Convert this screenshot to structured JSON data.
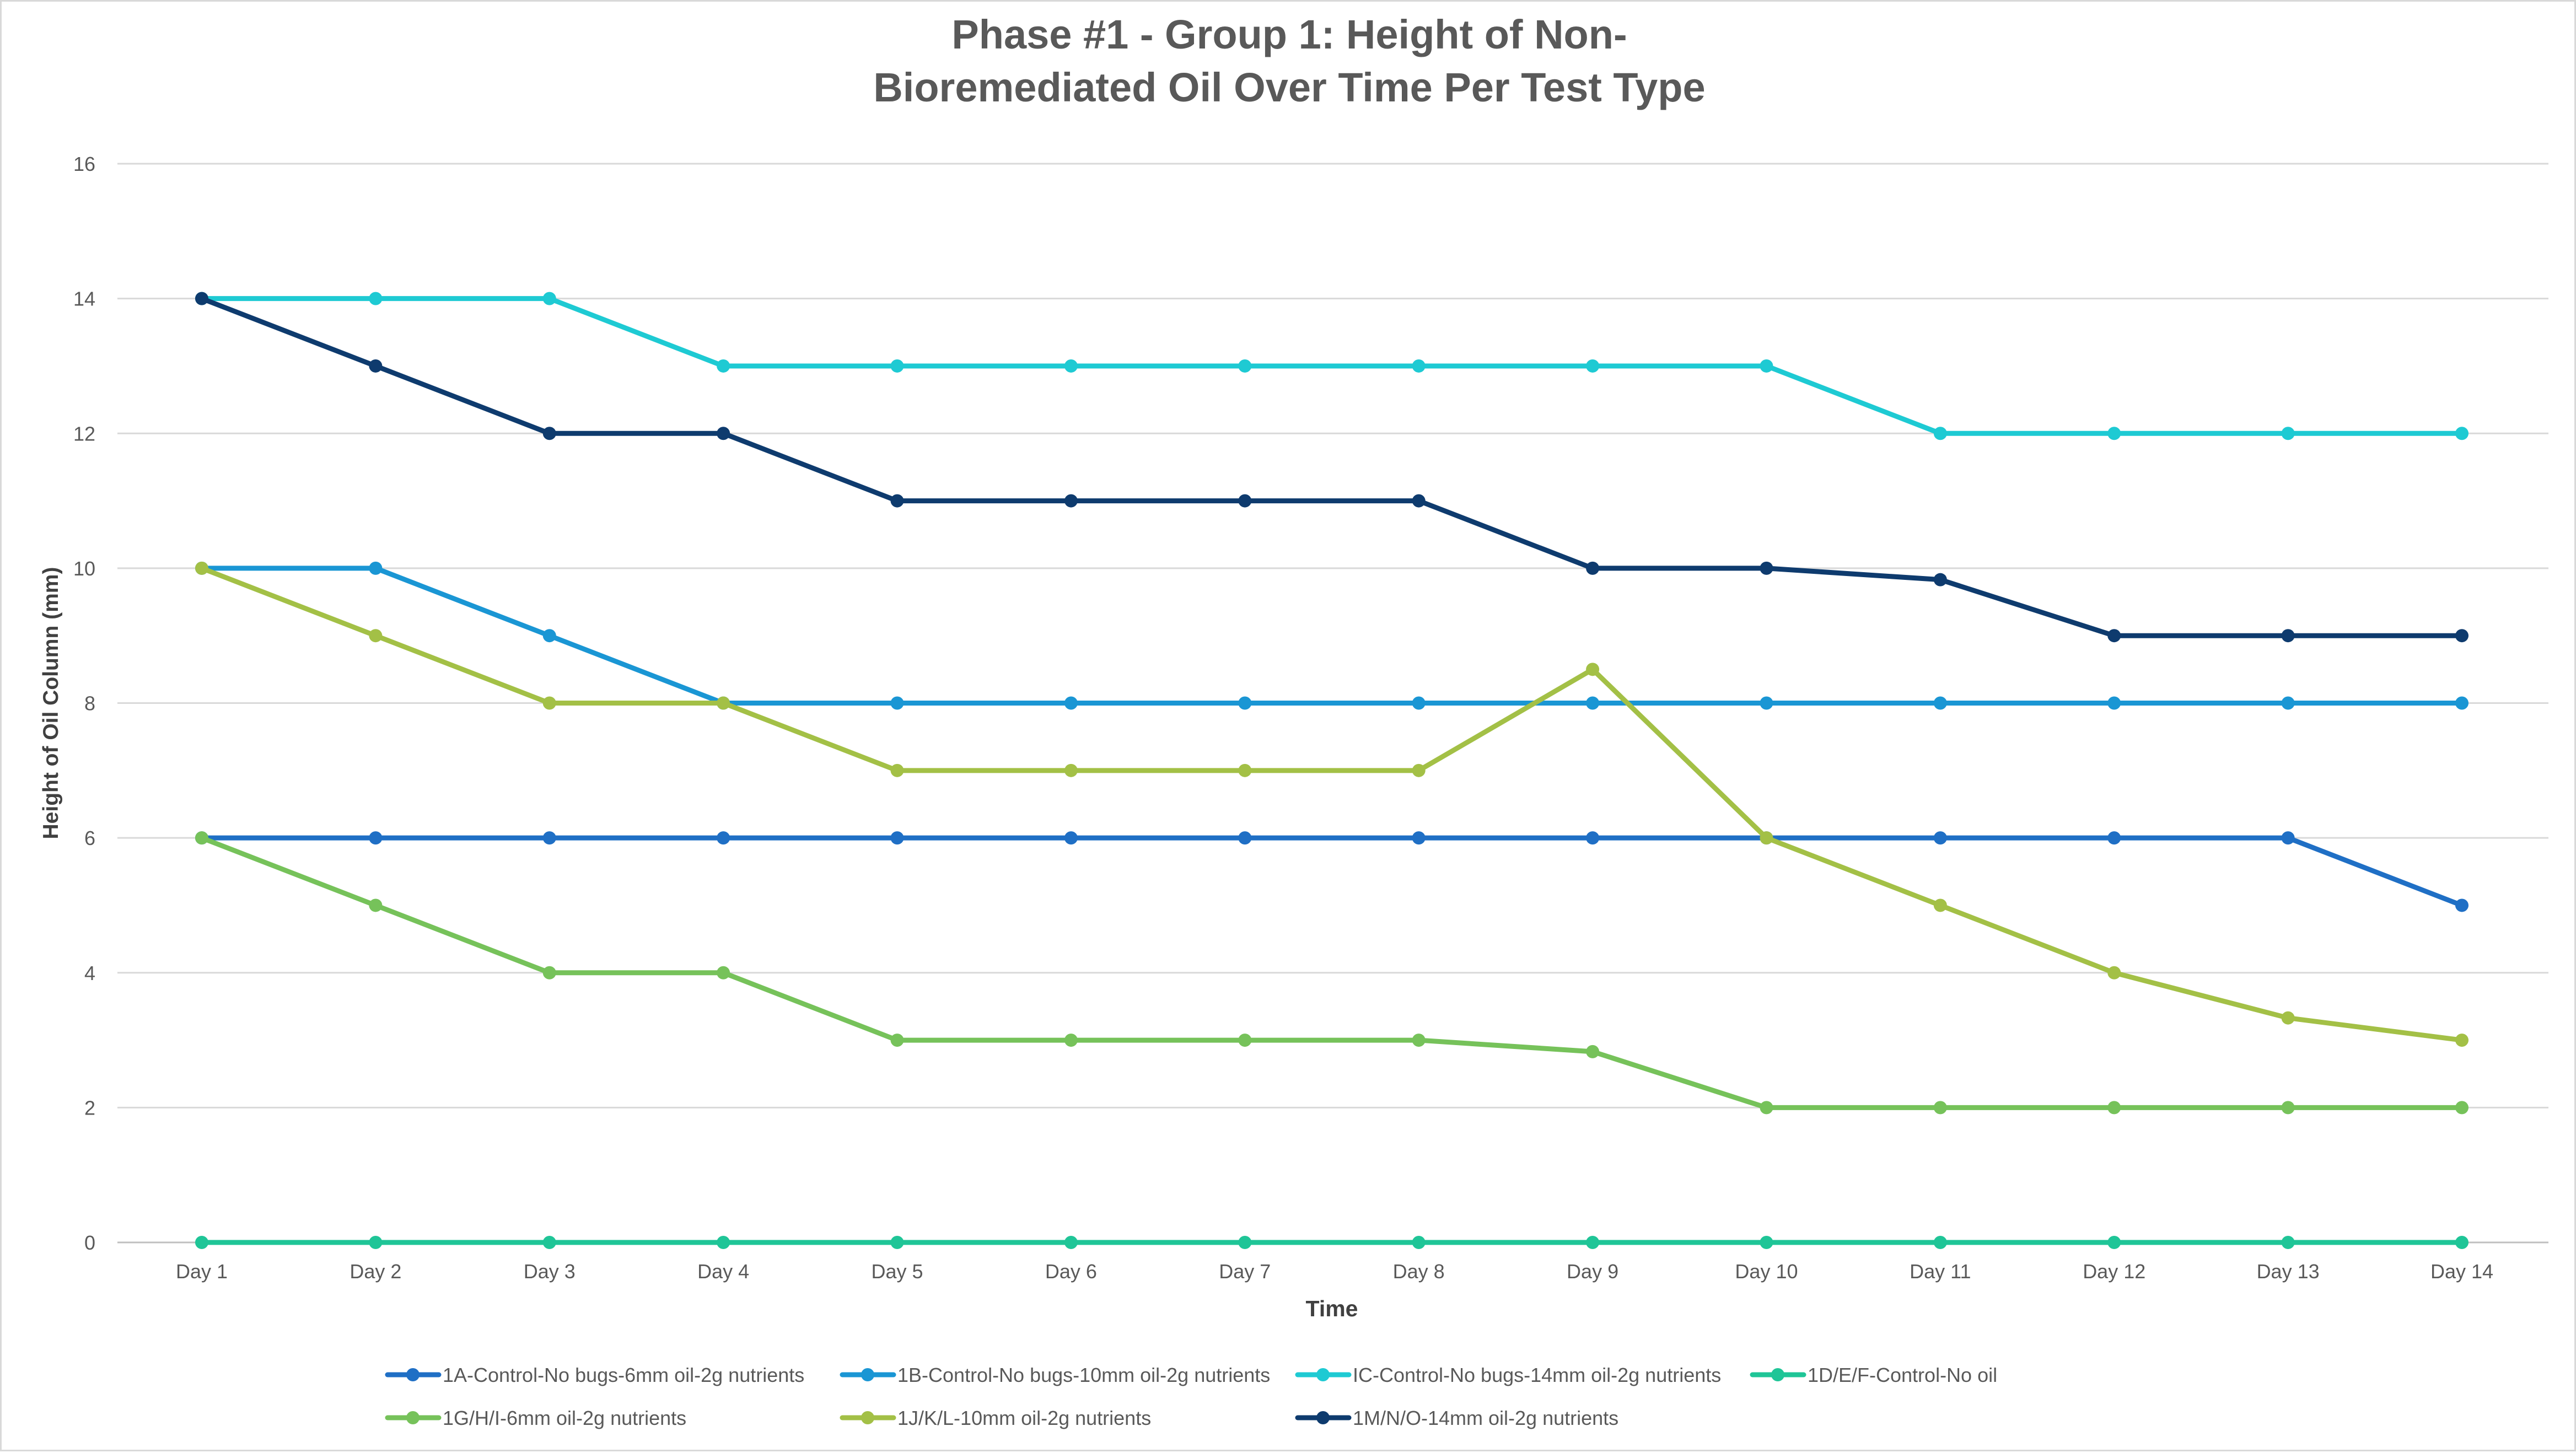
{
  "chart_data": {
    "type": "line",
    "title": "Phase #1 - Group 1: Height of Non-\nBioremediated Oil Over Time Per Test Type",
    "xlabel": "Time",
    "ylabel": "Height of Oil Column (mm)",
    "ylim": [
      0,
      16
    ],
    "yticks": [
      0,
      2,
      4,
      6,
      8,
      10,
      12,
      14,
      16
    ],
    "grid": true,
    "legend_position": "bottom",
    "categories": [
      "Day 1",
      "Day 2",
      "Day 3",
      "Day 4",
      "Day 5",
      "Day 6",
      "Day 7",
      "Day 8",
      "Day 9",
      "Day 10",
      "Day 11",
      "Day 12",
      "Day 13",
      "Day 14"
    ],
    "series": [
      {
        "name": "1A-Control-No bugs-6mm oil-2g nutrients",
        "color": "#1f6fc5",
        "values": [
          6,
          6,
          6,
          6,
          6,
          6,
          6,
          6,
          6,
          6,
          6,
          6,
          6,
          5
        ]
      },
      {
        "name": "1B-Control-No bugs-10mm oil-2g nutrients",
        "color": "#1a96d4",
        "values": [
          10,
          10,
          9,
          8,
          8,
          8,
          8,
          8,
          8,
          8,
          8,
          8,
          8,
          8
        ]
      },
      {
        "name": "IC-Control-No bugs-14mm oil-2g nutrients",
        "color": "#1ecad3",
        "values": [
          14,
          14,
          14,
          13,
          13,
          13,
          13,
          13,
          13,
          13,
          12,
          12,
          12,
          12
        ]
      },
      {
        "name": "1D/E/F-Control-No oil",
        "color": "#1fc597",
        "values": [
          0,
          0,
          0,
          0,
          0,
          0,
          0,
          0,
          0,
          0,
          0,
          0,
          0,
          0
        ]
      },
      {
        "name": "1G/H/I-6mm oil-2g nutrients",
        "color": "#76c25a",
        "values": [
          6,
          5,
          4,
          4,
          3,
          3,
          3,
          3,
          2.83,
          2,
          2,
          2,
          2,
          2
        ]
      },
      {
        "name": "1J/K/L-10mm oil-2g nutrients",
        "color": "#a3c046",
        "values": [
          10,
          9,
          8,
          8,
          7,
          7,
          7,
          7,
          8.5,
          6,
          5,
          4,
          3.33,
          3
        ]
      },
      {
        "name": "1M/N/O-14mm oil-2g nutrients",
        "color": "#0e3b6e",
        "values": [
          14,
          13,
          12,
          12,
          11,
          11,
          11,
          11,
          10,
          10,
          9.83,
          9,
          9,
          9
        ]
      }
    ]
  }
}
